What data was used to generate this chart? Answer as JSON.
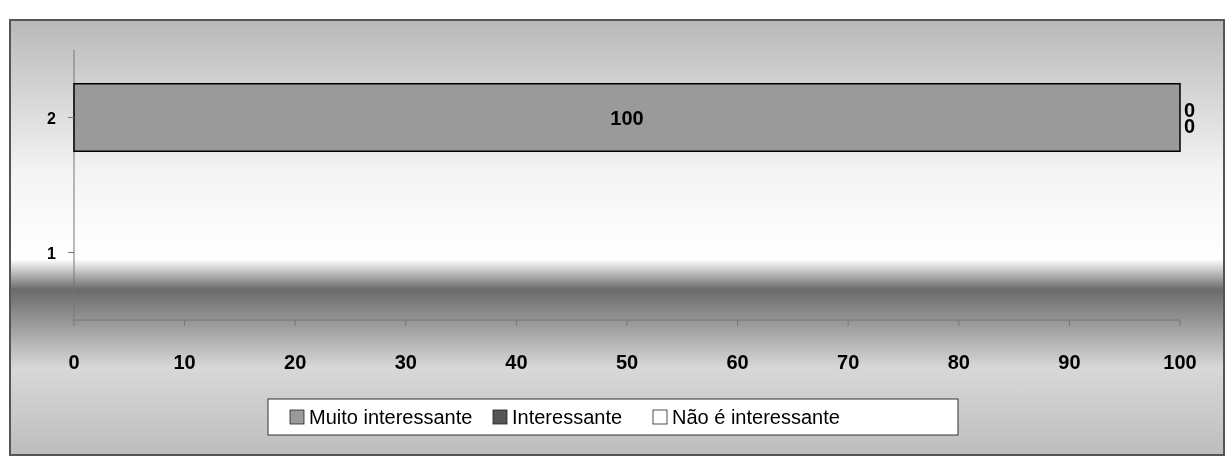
{
  "chart_data": {
    "type": "bar",
    "orientation": "horizontal",
    "stacked": true,
    "categories": [
      "2",
      "1"
    ],
    "series": [
      {
        "name": "Muito interessante",
        "color": "#9a9a9a",
        "values": [
          100,
          null
        ],
        "value_labels": [
          "100",
          null
        ]
      },
      {
        "name": "Interessante",
        "color": "#555555",
        "values": [
          0,
          null
        ],
        "value_labels": [
          "0",
          null
        ]
      },
      {
        "name": "Não é interessante",
        "color": "#ffffff",
        "values": [
          0,
          null
        ],
        "value_labels": [
          "0",
          null
        ]
      }
    ],
    "xlim": [
      0,
      100
    ],
    "xticks": [
      0,
      10,
      20,
      30,
      40,
      50,
      60,
      70,
      80,
      90,
      100
    ],
    "grid": false,
    "legend": "bottom"
  }
}
